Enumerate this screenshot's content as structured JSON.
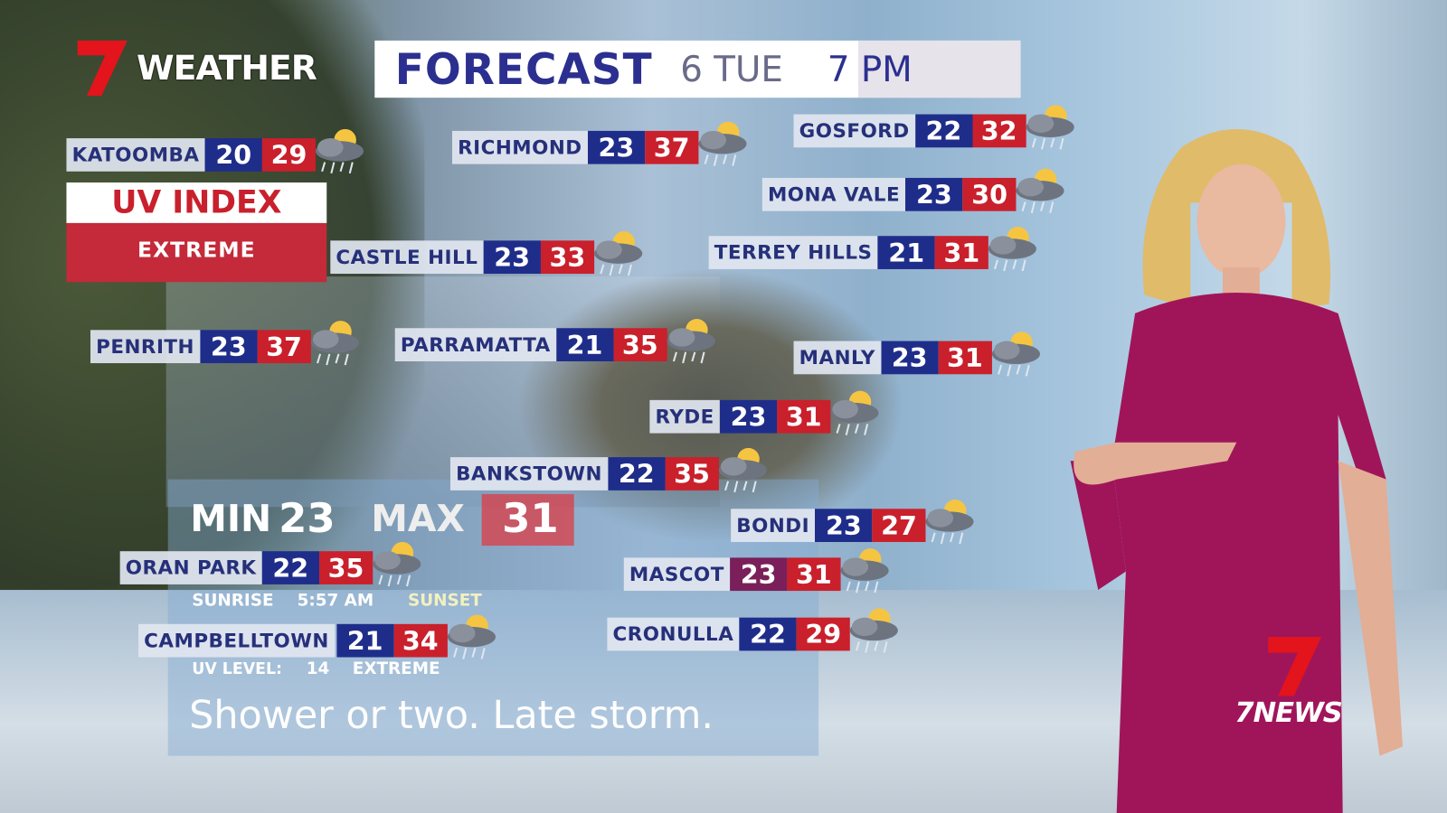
{
  "broadcast": {
    "brand": "WEATHER",
    "network_logo": "7NEWS",
    "accent_red": "#c9202c",
    "accent_blue": "#1f2d8a"
  },
  "title_bar": {
    "title": "FORECAST",
    "date": "6 TUE",
    "time": "7 PM"
  },
  "uv_panel": {
    "title": "UV INDEX",
    "level": "EXTREME"
  },
  "locations": [
    {
      "name": "KATOOMBA",
      "min": "20",
      "max": "29",
      "icon": "storm-cloud-sun-icon"
    },
    {
      "name": "RICHMOND",
      "min": "23",
      "max": "37",
      "icon": "storm-cloud-sun-icon"
    },
    {
      "name": "GOSFORD",
      "min": "22",
      "max": "32",
      "icon": "storm-cloud-sun-icon"
    },
    {
      "name": "MONA VALE",
      "min": "23",
      "max": "30",
      "icon": "storm-cloud-sun-icon"
    },
    {
      "name": "CASTLE HILL",
      "min": "23",
      "max": "33",
      "icon": "storm-cloud-sun-icon"
    },
    {
      "name": "TERREY HILLS",
      "min": "21",
      "max": "31",
      "icon": "storm-cloud-sun-icon"
    },
    {
      "name": "PENRITH",
      "min": "23",
      "max": "37",
      "icon": "storm-cloud-sun-icon"
    },
    {
      "name": "PARRAMATTA",
      "min": "21",
      "max": "35",
      "icon": "storm-cloud-sun-icon"
    },
    {
      "name": "MANLY",
      "min": "23",
      "max": "31",
      "icon": "storm-cloud-sun-icon"
    },
    {
      "name": "RYDE",
      "min": "23",
      "max": "31",
      "icon": "storm-cloud-sun-icon"
    },
    {
      "name": "BANKSTOWN",
      "min": "22",
      "max": "35",
      "icon": "storm-cloud-sun-icon"
    },
    {
      "name": "BONDI",
      "min": "23",
      "max": "27",
      "icon": "storm-cloud-sun-icon"
    },
    {
      "name": "ORAN PARK",
      "min": "22",
      "max": "35",
      "icon": "storm-cloud-sun-icon"
    },
    {
      "name": "MASCOT",
      "min": "23",
      "max": "31",
      "icon": "storm-cloud-sun-icon"
    },
    {
      "name": "CAMPBELLTOWN",
      "min": "21",
      "max": "34",
      "icon": "storm-cloud-sun-icon"
    },
    {
      "name": "CRONULLA",
      "min": "22",
      "max": "29",
      "icon": "storm-cloud-sun-icon"
    }
  ],
  "sydney_panel": {
    "min_label": "MIN",
    "min_value": "23",
    "max_label": "MAX",
    "max_value": "31",
    "sunrise_label": "SUNRISE",
    "sunrise_time": "5:57 AM",
    "sunset_label": "SUNSET",
    "uv_label": "UV LEVEL:",
    "uv_value": "14",
    "uv_level": "EXTREME",
    "summary": "Shower or two. Late storm."
  }
}
